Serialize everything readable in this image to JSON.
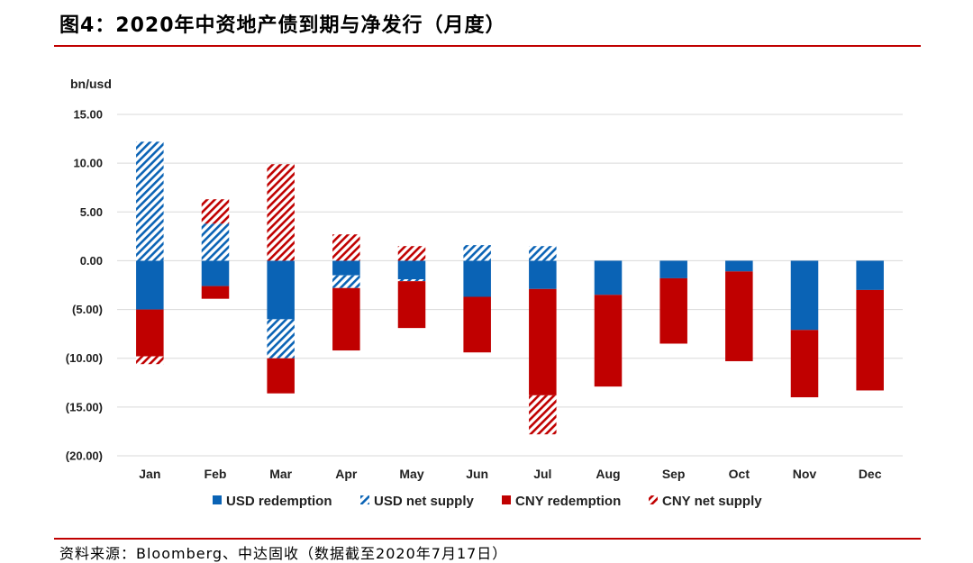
{
  "header": {
    "title": "图4：2020年中资地产债到期与净发行（月度）"
  },
  "footer": {
    "source": "资料来源：Bloomberg、中达固收（数据截至2020年7月17日）"
  },
  "colors": {
    "rule": "#c00000",
    "usd": "#0a63b5",
    "cny": "#c00000",
    "grid": "#d9d9d9"
  },
  "chart_data": {
    "type": "bar",
    "stacked": true,
    "title": "",
    "ylabel": "bn/usd",
    "xlabel": "",
    "ylim": [
      -20,
      15
    ],
    "yticks": [
      15,
      10,
      5,
      0,
      -5,
      -10,
      -15,
      -20
    ],
    "ytick_labels": [
      "15.00",
      "10.00",
      "5.00",
      "0.00",
      "(5.00)",
      "(10.00)",
      "(15.00)",
      "(20.00)"
    ],
    "grid": true,
    "legend_position": "bottom",
    "categories": [
      "Jan",
      "Feb",
      "Mar",
      "Apr",
      "May",
      "Jun",
      "Jul",
      "Aug",
      "Sep",
      "Oct",
      "Nov",
      "Dec"
    ],
    "series": [
      {
        "name": "USD redemption",
        "color": "#0a63b5",
        "pattern": "solid",
        "values": [
          -5.0,
          -2.6,
          -6.0,
          -1.5,
          -1.9,
          -3.7,
          -2.9,
          -3.5,
          -1.8,
          -1.1,
          -7.1,
          -3.0
        ]
      },
      {
        "name": "USD net supply",
        "color": "#0a63b5",
        "pattern": "hatched",
        "values": [
          12.2,
          3.8,
          -4.0,
          -1.3,
          -0.2,
          1.6,
          1.5,
          0,
          0,
          0,
          0,
          0
        ]
      },
      {
        "name": "CNY redemption",
        "color": "#c00000",
        "pattern": "solid",
        "values": [
          -4.8,
          -1.3,
          -3.6,
          -6.4,
          -4.8,
          -5.7,
          -10.9,
          -9.4,
          -6.7,
          -9.2,
          -6.9,
          -10.3
        ]
      },
      {
        "name": "CNY net supply",
        "color": "#c00000",
        "pattern": "hatched",
        "values": [
          -0.8,
          2.5,
          9.9,
          2.7,
          1.5,
          0,
          -4.0,
          0,
          0,
          0,
          0,
          0
        ]
      }
    ]
  }
}
